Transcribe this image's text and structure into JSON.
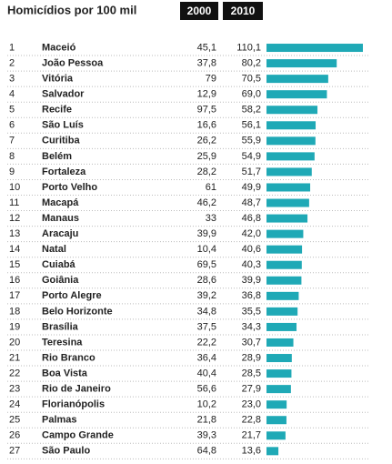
{
  "chart_data": {
    "type": "bar",
    "title": "Homicídios por 100 mil",
    "ranks": [
      1,
      2,
      3,
      4,
      5,
      6,
      7,
      8,
      9,
      10,
      11,
      12,
      13,
      14,
      15,
      16,
      17,
      18,
      19,
      20,
      21,
      22,
      23,
      24,
      25,
      26,
      27
    ],
    "categories": [
      "Maceió",
      "João Pessoa",
      "Vitória",
      "Salvador",
      "Recife",
      "São Luís",
      "Curitiba",
      "Belém",
      "Fortaleza",
      "Porto Velho",
      "Macapá",
      "Manaus",
      "Aracaju",
      "Natal",
      "Cuiabá",
      "Goiânia",
      "Porto Alegre",
      "Belo Horizonte",
      "Brasília",
      "Teresina",
      "Rio Branco",
      "Boa Vista",
      "Rio de Janeiro",
      "Florianópolis",
      "Palmas",
      "Campo Grande",
      "São Paulo"
    ],
    "series": [
      {
        "name": "2000",
        "values": [
          45.1,
          37.8,
          79,
          12.9,
          97.5,
          16.6,
          26.2,
          25.9,
          28.2,
          61,
          46.2,
          33,
          39.9,
          10.4,
          69.5,
          28.6,
          39.2,
          34.8,
          37.5,
          22.2,
          36.4,
          40.4,
          56.6,
          10.2,
          21.8,
          39.3,
          64.8
        ],
        "value_labels": [
          "45,1",
          "37,8",
          "79",
          "12,9",
          "97,5",
          "16,6",
          "26,2",
          "25,9",
          "28,2",
          "61",
          "46,2",
          "33",
          "39,9",
          "10,4",
          "69,5",
          "28,6",
          "39,2",
          "34,8",
          "37,5",
          "22,2",
          "36,4",
          "40,4",
          "56,6",
          "10,2",
          "21,8",
          "39,3",
          "64,8"
        ]
      },
      {
        "name": "2010",
        "color": "#1fa9b6",
        "values": [
          110.1,
          80.2,
          70.5,
          69.0,
          58.2,
          56.1,
          55.9,
          54.9,
          51.7,
          49.9,
          48.7,
          46.8,
          42.0,
          40.6,
          40.3,
          39.9,
          36.8,
          35.5,
          34.3,
          30.7,
          28.9,
          28.5,
          27.9,
          23.0,
          22.8,
          21.7,
          13.6
        ],
        "value_labels": [
          "110,1",
          "80,2",
          "70,5",
          "69,0",
          "58,2",
          "56,1",
          "55,9",
          "54,9",
          "51,7",
          "49,9",
          "48,7",
          "46,8",
          "42,0",
          "40,6",
          "40,3",
          "39,9",
          "36,8",
          "35,5",
          "34,3",
          "30,7",
          "28,9",
          "28,5",
          "27,9",
          "23,0",
          "22,8",
          "21,7",
          "13,6"
        ]
      }
    ]
  }
}
